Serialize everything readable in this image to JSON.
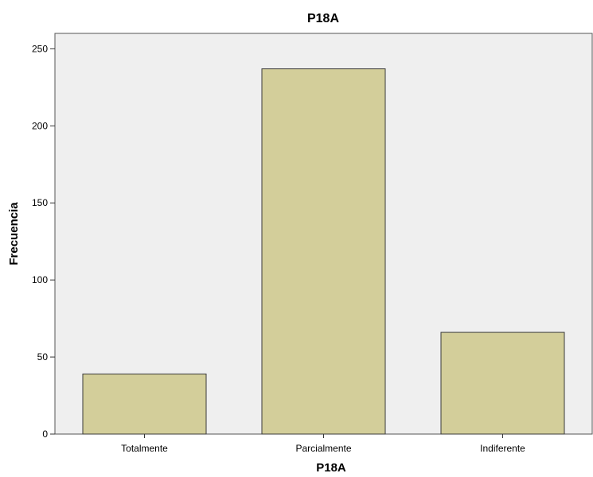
{
  "chart_data": {
    "type": "bar",
    "title": "P18A",
    "xlabel": "P18A",
    "ylabel": "Frecuencia",
    "categories": [
      "Totalmente",
      "Parcialmente",
      "Indiferente"
    ],
    "values": [
      39,
      237,
      66
    ],
    "ylim": [
      0,
      260
    ],
    "yticks": [
      0,
      50,
      100,
      150,
      200,
      250
    ],
    "grid": false,
    "colors": {
      "bar_fill": "#d3ce9a",
      "bar_stroke": "#3a3a3a",
      "plot_background": "#efefef",
      "axis": "#333333"
    }
  }
}
